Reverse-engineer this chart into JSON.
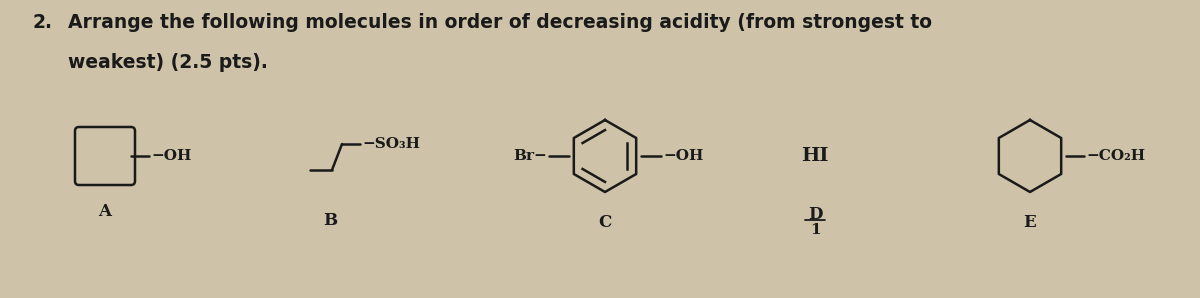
{
  "background_color": "#cec3a8",
  "text_color": "#1a1a1a",
  "question_number": "2.",
  "question_text_line1": "Arrange the following molecules in order of decreasing acidity (from strongest to",
  "question_text_line2": "weakest) (2.5 pts).",
  "font_size_question": 13.5,
  "font_size_label": 12,
  "font_size_molecule": 11,
  "figwidth": 12.0,
  "figheight": 2.98,
  "dpi": 100
}
